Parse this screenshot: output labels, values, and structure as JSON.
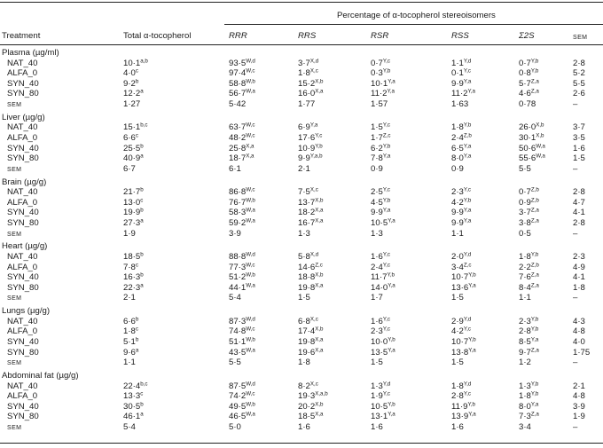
{
  "header": {
    "group_title": "Percentage of α-tocopherol stereoisomers",
    "col_treatment": "Treatment",
    "col_total": "Total α-tocopherol",
    "col_rrr": "RRR",
    "col_rrs": "RRS",
    "col_rsr": "RSR",
    "col_rss": "RSS",
    "col_sum": "Σ2S",
    "col_sem": "SEM"
  },
  "sections": [
    {
      "title": "Plasma (µg/ml)",
      "rows": [
        {
          "t": "NAT_40",
          "c": [
            [
              "10·1",
              "a,b"
            ],
            [
              "93·5",
              "W,d"
            ],
            [
              "3·7",
              "X,d"
            ],
            [
              "0·7",
              "Y,c"
            ],
            [
              "1·1",
              "Y,d"
            ],
            [
              "0·7",
              "Y,b"
            ],
            [
              "2·8",
              ""
            ]
          ]
        },
        {
          "t": "ALFA_0",
          "c": [
            [
              "4·0",
              "c"
            ],
            [
              "97·4",
              "W,c"
            ],
            [
              "1·8",
              "X,c"
            ],
            [
              "0·3",
              "Y,b"
            ],
            [
              "0·1",
              "Y,c"
            ],
            [
              "0·8",
              "Y,b"
            ],
            [
              "5·2",
              ""
            ]
          ]
        },
        {
          "t": "SYN_40",
          "c": [
            [
              "9·2",
              "b"
            ],
            [
              "58·8",
              "W,b"
            ],
            [
              "15·2",
              "X,b"
            ],
            [
              "10·1",
              "Y,a"
            ],
            [
              "9·9",
              "Y,a"
            ],
            [
              "5·7",
              "Z,a"
            ],
            [
              "5·5",
              ""
            ]
          ]
        },
        {
          "t": "SYN_80",
          "c": [
            [
              "12·2",
              "a"
            ],
            [
              "56·7",
              "W,a"
            ],
            [
              "16·0",
              "X,a"
            ],
            [
              "11·2",
              "Y,a"
            ],
            [
              "11·2",
              "Y,a"
            ],
            [
              "4·6",
              "Z,a"
            ],
            [
              "2·6",
              ""
            ]
          ]
        }
      ],
      "sem": [
        "1·27",
        "5·42",
        "1·77",
        "1·57",
        "1·63",
        "0·78",
        "–"
      ]
    },
    {
      "title": "Liver (µg/g)",
      "rows": [
        {
          "t": "NAT_40",
          "c": [
            [
              "15·1",
              "b,c"
            ],
            [
              "63·7",
              "W,c"
            ],
            [
              "6·9",
              "Y,a"
            ],
            [
              "1·5",
              "Y,c"
            ],
            [
              "1·8",
              "Y,b"
            ],
            [
              "26·0",
              "X,b"
            ],
            [
              "3·7",
              ""
            ]
          ]
        },
        {
          "t": "ALFA_0",
          "c": [
            [
              "6·6",
              "c"
            ],
            [
              "48·2",
              "W,c"
            ],
            [
              "17·6",
              "Y,c"
            ],
            [
              "1·7",
              "Z,c"
            ],
            [
              "2·4",
              "Z,b"
            ],
            [
              "30·1",
              "X,b"
            ],
            [
              "3·5",
              ""
            ]
          ]
        },
        {
          "t": "SYN_40",
          "c": [
            [
              "25·5",
              "b"
            ],
            [
              "25·8",
              "X,a"
            ],
            [
              "10·9",
              "Y,b"
            ],
            [
              "6·2",
              "Y,b"
            ],
            [
              "6·5",
              "Y,a"
            ],
            [
              "50·6",
              "W,a"
            ],
            [
              "1·6",
              ""
            ]
          ]
        },
        {
          "t": "SYN_80",
          "c": [
            [
              "40·9",
              "a"
            ],
            [
              "18·7",
              "X,a"
            ],
            [
              "9·9",
              "Y,a,b"
            ],
            [
              "7·8",
              "Y,a"
            ],
            [
              "8·0",
              "Y,a"
            ],
            [
              "55·6",
              "W,a"
            ],
            [
              "1·5",
              ""
            ]
          ]
        }
      ],
      "sem": [
        "6·7",
        "6·1",
        "2·1",
        "0·9",
        "0·9",
        "5·5",
        "–"
      ]
    },
    {
      "title": "Brain (µg/g)",
      "rows": [
        {
          "t": "NAT_40",
          "c": [
            [
              "21·7",
              "b"
            ],
            [
              "86·8",
              "W,c"
            ],
            [
              "7·5",
              "X,c"
            ],
            [
              "2·5",
              "Y,c"
            ],
            [
              "2·3",
              "Y,c"
            ],
            [
              "0·7",
              "Z,b"
            ],
            [
              "2·8",
              ""
            ]
          ]
        },
        {
          "t": "ALFA_0",
          "c": [
            [
              "13·0",
              "c"
            ],
            [
              "76·7",
              "W,b"
            ],
            [
              "13·7",
              "X,b"
            ],
            [
              "4·5",
              "Y,b"
            ],
            [
              "4·2",
              "Y,b"
            ],
            [
              "0·9",
              "Z,b"
            ],
            [
              "4·7",
              ""
            ]
          ]
        },
        {
          "t": "SYN_40",
          "c": [
            [
              "19·9",
              "b"
            ],
            [
              "58·3",
              "W,a"
            ],
            [
              "18·2",
              "X,a"
            ],
            [
              "9·9",
              "Y,a"
            ],
            [
              "9·9",
              "Y,a"
            ],
            [
              "3·7",
              "Z,a"
            ],
            [
              "4·1",
              ""
            ]
          ]
        },
        {
          "t": "SYN_80",
          "c": [
            [
              "27·3",
              "a"
            ],
            [
              "59·2",
              "W,a"
            ],
            [
              "16·7",
              "X,a"
            ],
            [
              "10·5",
              "Y,a"
            ],
            [
              "9·9",
              "Y,a"
            ],
            [
              "3·8",
              "Z,a"
            ],
            [
              "2·8",
              ""
            ]
          ]
        }
      ],
      "sem": [
        "1·9",
        "3·9",
        "1·3",
        "1·3",
        "1·1",
        "0·5",
        "–"
      ]
    },
    {
      "title": "Heart (µg/g)",
      "rows": [
        {
          "t": "NAT_40",
          "c": [
            [
              "18·5",
              "b"
            ],
            [
              "88·8",
              "W,d"
            ],
            [
              "5·8",
              "X,d"
            ],
            [
              "1·6",
              "Y,c"
            ],
            [
              "2·0",
              "Y,d"
            ],
            [
              "1·8",
              "Y,b"
            ],
            [
              "2·3",
              ""
            ]
          ]
        },
        {
          "t": "ALFA_0",
          "c": [
            [
              "7·8",
              "c"
            ],
            [
              "77·3",
              "W,c"
            ],
            [
              "14·6",
              "Z,c"
            ],
            [
              "2·4",
              "Y,c"
            ],
            [
              "3·4",
              "Z,c"
            ],
            [
              "2·2",
              "Z,b"
            ],
            [
              "4·9",
              ""
            ]
          ]
        },
        {
          "t": "SYN_40",
          "c": [
            [
              "16·3",
              "b"
            ],
            [
              "51·2",
              "W,b"
            ],
            [
              "18·8",
              "X,b"
            ],
            [
              "11·7",
              "Y,b"
            ],
            [
              "10·7",
              "Y,b"
            ],
            [
              "7·6",
              "Z,a"
            ],
            [
              "4·1",
              ""
            ]
          ]
        },
        {
          "t": "SYN_80",
          "c": [
            [
              "22·3",
              "a"
            ],
            [
              "44·1",
              "W,a"
            ],
            [
              "19·8",
              "X,a"
            ],
            [
              "14·0",
              "Y,a"
            ],
            [
              "13·6",
              "Y,a"
            ],
            [
              "8·4",
              "Z,a"
            ],
            [
              "1·8",
              ""
            ]
          ]
        }
      ],
      "sem": [
        "2·1",
        "5·4",
        "1·5",
        "1·7",
        "1·5",
        "1·1",
        "–"
      ]
    },
    {
      "title": "Lungs (µg/g)",
      "rows": [
        {
          "t": "NAT_40",
          "c": [
            [
              "6·6",
              "b"
            ],
            [
              "87·3",
              "W,d"
            ],
            [
              "6·8",
              "X,c"
            ],
            [
              "1·6",
              "Y,c"
            ],
            [
              "2·9",
              "Y,d"
            ],
            [
              "2·3",
              "Y,b"
            ],
            [
              "4·3",
              ""
            ]
          ]
        },
        {
          "t": "ALFA_0",
          "c": [
            [
              "1·8",
              "c"
            ],
            [
              "74·8",
              "W,c"
            ],
            [
              "17·4",
              "X,b"
            ],
            [
              "2·3",
              "Y,c"
            ],
            [
              "4·2",
              "Y,c"
            ],
            [
              "2·8",
              "Y,b"
            ],
            [
              "4·8",
              ""
            ]
          ]
        },
        {
          "t": "SYN_40",
          "c": [
            [
              "5·1",
              "b"
            ],
            [
              "51·1",
              "W,b"
            ],
            [
              "19·8",
              "X,a"
            ],
            [
              "10·0",
              "Y,b"
            ],
            [
              "10·7",
              "Y,b"
            ],
            [
              "8·5",
              "Y,a"
            ],
            [
              "4·0",
              ""
            ]
          ]
        },
        {
          "t": "SYN_80",
          "c": [
            [
              "9·6",
              "a"
            ],
            [
              "43·5",
              "W,a"
            ],
            [
              "19·6",
              "X,a"
            ],
            [
              "13·5",
              "Y,a"
            ],
            [
              "13·8",
              "Y,a"
            ],
            [
              "9·7",
              "Z,a"
            ],
            [
              "1·75",
              ""
            ]
          ]
        }
      ],
      "sem": [
        "1·1",
        "5·5",
        "1·8",
        "1·5",
        "1·5",
        "1·2",
        "–"
      ]
    },
    {
      "title": "Abdominal fat (µg/g)",
      "rows": [
        {
          "t": "NAT_40",
          "c": [
            [
              "22·4",
              "b,c"
            ],
            [
              "87·5",
              "W,d"
            ],
            [
              "8·2",
              "X,c"
            ],
            [
              "1·3",
              "Y,d"
            ],
            [
              "1·8",
              "Y,d"
            ],
            [
              "1·3",
              "Y,b"
            ],
            [
              "2·1",
              ""
            ]
          ]
        },
        {
          "t": "ALFA_0",
          "c": [
            [
              "13·3",
              "c"
            ],
            [
              "74·2",
              "W,c"
            ],
            [
              "19·3",
              "X,a,b"
            ],
            [
              "1·9",
              "Y,c"
            ],
            [
              "2·8",
              "Y,c"
            ],
            [
              "1·8",
              "Y,b"
            ],
            [
              "4·8",
              ""
            ]
          ]
        },
        {
          "t": "SYN_40",
          "c": [
            [
              "30·5",
              "b"
            ],
            [
              "49·5",
              "W,b"
            ],
            [
              "20·2",
              "X,b"
            ],
            [
              "10·5",
              "Y,b"
            ],
            [
              "11·9",
              "Y,b"
            ],
            [
              "8·0",
              "Y,a"
            ],
            [
              "3·9",
              ""
            ]
          ]
        },
        {
          "t": "SYN_80",
          "c": [
            [
              "46·1",
              "a"
            ],
            [
              "46·5",
              "W,a"
            ],
            [
              "18·5",
              "X,a"
            ],
            [
              "13·1",
              "Y,a"
            ],
            [
              "13·9",
              "Y,a"
            ],
            [
              "7·3",
              "Z,a"
            ],
            [
              "1·9",
              ""
            ]
          ]
        }
      ],
      "sem": [
        "5·4",
        "5·0",
        "1·6",
        "1·6",
        "1·6",
        "3·4",
        "–"
      ]
    }
  ]
}
